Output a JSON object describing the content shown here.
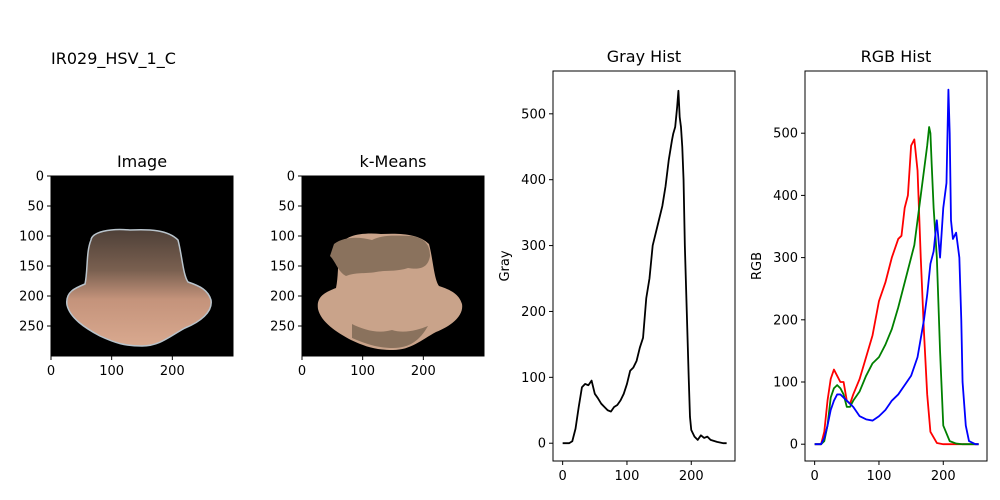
{
  "figure_title": "IR029_HSV_1_C",
  "panels": {
    "image": {
      "title": "Image",
      "xticks": [
        0,
        100,
        200
      ],
      "yticks": [
        0,
        50,
        100,
        150,
        200,
        250
      ],
      "extent": [
        0,
        300
      ],
      "colors": {
        "background": "#000000",
        "skin_light": "#d9a98f",
        "skin_mid": "#c4937b",
        "skin_dark": "#6b5444",
        "rim": "#b9c4cc"
      }
    },
    "kmeans": {
      "title": "k-Means",
      "xticks": [
        0,
        100,
        200
      ],
      "yticks": [
        0,
        50,
        100,
        150,
        200,
        250
      ],
      "extent": [
        0,
        300
      ],
      "colors": {
        "background": "#000000",
        "cluster_light": "#c9a38a",
        "cluster_dark": "#8a725d"
      }
    }
  },
  "chart_data": [
    {
      "type": "line",
      "title": "Gray Hist",
      "xlabel": "",
      "ylabel": "Gray",
      "xlim": [
        -15,
        268
      ],
      "ylim": [
        -27,
        565
      ],
      "xticks": [
        0,
        100,
        200
      ],
      "yticks": [
        0,
        100,
        200,
        300,
        400,
        500
      ],
      "series": [
        {
          "color": "#000000",
          "x": [
            0,
            10,
            15,
            20,
            25,
            30,
            35,
            40,
            45,
            50,
            55,
            60,
            65,
            70,
            75,
            80,
            85,
            90,
            95,
            100,
            105,
            110,
            115,
            120,
            125,
            130,
            135,
            140,
            145,
            150,
            155,
            160,
            165,
            170,
            172,
            175,
            178,
            180,
            182,
            184,
            186,
            188,
            190,
            193,
            196,
            198,
            200,
            205,
            210,
            215,
            220,
            225,
            230,
            240,
            250,
            255
          ],
          "y": [
            0,
            0,
            3,
            22,
            55,
            85,
            90,
            88,
            95,
            75,
            68,
            60,
            55,
            50,
            48,
            55,
            58,
            65,
            75,
            90,
            110,
            115,
            125,
            145,
            160,
            220,
            250,
            300,
            320,
            340,
            360,
            390,
            430,
            460,
            470,
            480,
            510,
            535,
            495,
            480,
            450,
            400,
            300,
            200,
            100,
            40,
            20,
            10,
            5,
            12,
            8,
            10,
            5,
            2,
            0,
            0
          ]
        }
      ]
    },
    {
      "type": "line",
      "title": "RGB Hist",
      "xlabel": "",
      "ylabel": "RGB",
      "xlim": [
        -15,
        268
      ],
      "ylim": [
        -27,
        600
      ],
      "xticks": [
        0,
        100,
        200
      ],
      "yticks": [
        0,
        100,
        200,
        300,
        400,
        500
      ],
      "series": [
        {
          "color": "#ff0000",
          "x": [
            0,
            10,
            15,
            20,
            25,
            30,
            35,
            40,
            45,
            50,
            55,
            60,
            70,
            80,
            90,
            100,
            110,
            120,
            130,
            135,
            140,
            145,
            150,
            155,
            160,
            165,
            170,
            175,
            180,
            190,
            200,
            210,
            220,
            230,
            250,
            255
          ],
          "y": [
            0,
            0,
            20,
            70,
            105,
            120,
            110,
            100,
            100,
            70,
            65,
            80,
            105,
            140,
            175,
            230,
            260,
            300,
            330,
            335,
            380,
            400,
            480,
            490,
            440,
            300,
            180,
            80,
            20,
            2,
            0,
            0,
            0,
            0,
            0,
            0
          ]
        },
        {
          "color": "#008000",
          "x": [
            0,
            10,
            15,
            20,
            25,
            30,
            35,
            40,
            45,
            50,
            55,
            60,
            70,
            80,
            90,
            100,
            110,
            120,
            130,
            140,
            150,
            155,
            160,
            165,
            170,
            175,
            178,
            180,
            182,
            185,
            190,
            195,
            200,
            210,
            220,
            230,
            250,
            255
          ],
          "y": [
            0,
            0,
            5,
            30,
            75,
            90,
            95,
            90,
            80,
            60,
            60,
            70,
            85,
            110,
            130,
            140,
            160,
            185,
            220,
            260,
            300,
            320,
            360,
            400,
            440,
            480,
            510,
            500,
            450,
            380,
            300,
            150,
            30,
            5,
            1,
            0,
            0,
            0
          ],
          "x_note": ""
        },
        {
          "color": "#0000ff",
          "x": [
            0,
            10,
            15,
            20,
            25,
            30,
            35,
            40,
            45,
            50,
            60,
            70,
            80,
            90,
            100,
            110,
            120,
            130,
            140,
            150,
            160,
            165,
            170,
            175,
            180,
            185,
            190,
            195,
            200,
            205,
            208,
            210,
            212,
            215,
            220,
            225,
            228,
            230,
            235,
            240,
            250,
            255
          ],
          "y": [
            0,
            0,
            10,
            30,
            55,
            70,
            80,
            80,
            75,
            70,
            60,
            45,
            40,
            38,
            45,
            55,
            70,
            80,
            95,
            110,
            140,
            170,
            200,
            240,
            290,
            310,
            360,
            300,
            380,
            420,
            570,
            500,
            360,
            330,
            340,
            300,
            200,
            100,
            30,
            5,
            0,
            0
          ]
        }
      ]
    }
  ]
}
